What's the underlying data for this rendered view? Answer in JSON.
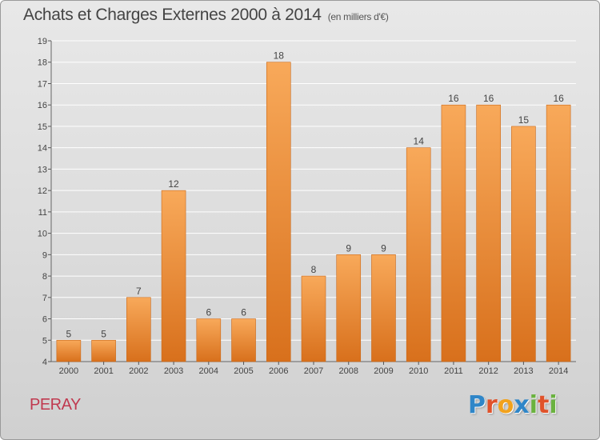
{
  "header": {
    "title": "Achats et Charges Externes 2000 à 2014",
    "unit": "(en milliers d'€)"
  },
  "footer": {
    "commune": "PERAY",
    "logo_letters": [
      {
        "char": "P",
        "color": "#2f86c8"
      },
      {
        "char": "r",
        "color": "#e0522a"
      },
      {
        "char": "o",
        "color": "#f2a21c"
      },
      {
        "char": "x",
        "color": "#2f86c8"
      },
      {
        "char": "i",
        "color": "#6ab23f"
      },
      {
        "char": "t",
        "color": "#e0522a"
      },
      {
        "char": "i",
        "color": "#6ab23f"
      }
    ]
  },
  "colors": {
    "bar_top": "#f8a95a",
    "bar_bottom": "#d8701c",
    "text": "#444444",
    "grid": "#ffffff"
  },
  "chart_data": {
    "type": "bar",
    "title": "Achats et Charges Externes 2000 à 2014",
    "subtitle": "(en milliers d'€)",
    "xlabel": "",
    "ylabel": "",
    "categories": [
      "2000",
      "2001",
      "2002",
      "2003",
      "2004",
      "2005",
      "2006",
      "2007",
      "2008",
      "2009",
      "2010",
      "2011",
      "2012",
      "2013",
      "2014"
    ],
    "values": [
      5,
      5,
      7,
      12,
      6,
      6,
      18,
      8,
      9,
      9,
      14,
      16,
      16,
      15,
      16
    ],
    "ylim": [
      4,
      19
    ],
    "yticks": [
      4,
      5,
      6,
      7,
      8,
      9,
      10,
      11,
      12,
      13,
      14,
      15,
      16,
      17,
      18,
      19
    ],
    "grid": true,
    "legend": "none",
    "data_labels": true
  }
}
